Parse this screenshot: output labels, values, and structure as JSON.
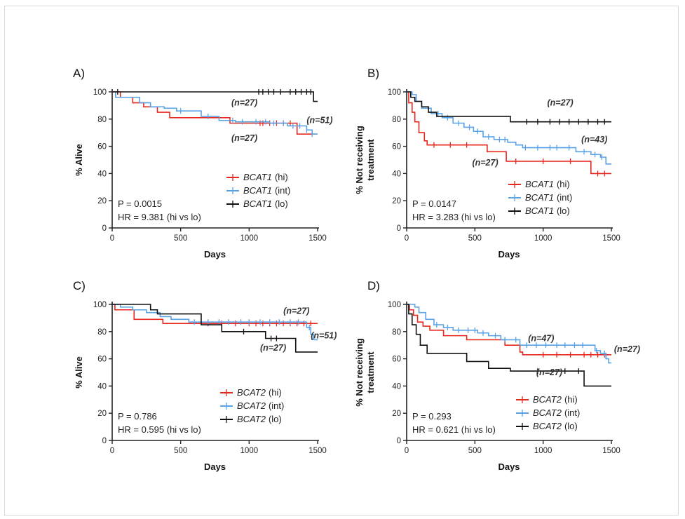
{
  "colors": {
    "hi": "#e8281f",
    "int": "#5aa2e6",
    "lo": "#111111",
    "axis": "#222222"
  },
  "chart_data": [
    {
      "panel": "A)",
      "type": "line",
      "xlabel": "Days",
      "ylabel": "% Alive",
      "ylabel2": "",
      "xlim": [
        0,
        1500
      ],
      "ylim": [
        0,
        100
      ],
      "xticks": [
        "0",
        "500",
        "1000",
        "1500"
      ],
      "yticks": [
        "0",
        "20",
        "40",
        "60",
        "80",
        "100"
      ],
      "p_text": "P = 0.0015",
      "hr_text": "HR = 9.381 (hi vs lo)",
      "series": [
        {
          "name": "BCAT1 (hi)",
          "gene": "BCAT1",
          "group": "(hi)",
          "key": "hi",
          "steps": [
            [
              0,
              100
            ],
            [
              60,
              96
            ],
            [
              150,
              92
            ],
            [
              230,
              89
            ],
            [
              330,
              85
            ],
            [
              420,
              81
            ],
            [
              700,
              81
            ],
            [
              860,
              77
            ],
            [
              1060,
              77
            ],
            [
              1350,
              69
            ],
            [
              1500,
              69
            ]
          ],
          "censors": [
            1080,
            1100,
            1150,
            1200,
            1250,
            1300
          ]
        },
        {
          "name": "BCAT1 (int)",
          "gene": "BCAT1",
          "group": "(int)",
          "key": "int",
          "steps": [
            [
              0,
              100
            ],
            [
              25,
              96
            ],
            [
              120,
              96
            ],
            [
              200,
              92
            ],
            [
              280,
              89
            ],
            [
              380,
              88
            ],
            [
              470,
              86
            ],
            [
              650,
              82
            ],
            [
              780,
              79
            ],
            [
              900,
              78
            ],
            [
              1150,
              77
            ],
            [
              1280,
              75
            ],
            [
              1420,
              72
            ],
            [
              1460,
              69
            ],
            [
              1500,
              69
            ]
          ],
          "censors": [
            500,
            700,
            880,
            950,
            1050,
            1120,
            1180,
            1250,
            1320,
            1370,
            1420,
            1460
          ]
        },
        {
          "name": "BCAT1 (lo)",
          "gene": "BCAT1",
          "group": "(lo)",
          "key": "lo",
          "steps": [
            [
              0,
              100
            ],
            [
              1470,
              100
            ],
            [
              1470,
              93
            ],
            [
              1500,
              93
            ]
          ],
          "censors": [
            40,
            1070,
            1100,
            1140,
            1180,
            1230,
            1300,
            1340,
            1380,
            1420,
            1450
          ]
        }
      ],
      "annotations": [
        {
          "text": "(n=27)",
          "x": 870,
          "y": 90
        },
        {
          "text": "(n=51)",
          "x": 1420,
          "y": 77
        },
        {
          "text": "(n=27)",
          "x": 870,
          "y": 64
        }
      ]
    },
    {
      "panel": "B)",
      "type": "line",
      "xlabel": "Days",
      "ylabel": "% Not receiving",
      "ylabel2": "treatment",
      "xlim": [
        0,
        1500
      ],
      "ylim": [
        0,
        100
      ],
      "xticks": [
        "0",
        "500",
        "1000",
        "1500"
      ],
      "yticks": [
        "0",
        "20",
        "40",
        "60",
        "80",
        "100"
      ],
      "p_text": "P = 0.0147",
      "hr_text": "HR = 3.283 (hi vs lo)",
      "series": [
        {
          "name": "BCAT1 (hi)",
          "gene": "BCAT1",
          "group": "(hi)",
          "key": "hi",
          "steps": [
            [
              0,
              100
            ],
            [
              15,
              92
            ],
            [
              40,
              85
            ],
            [
              60,
              78
            ],
            [
              90,
              70
            ],
            [
              130,
              64
            ],
            [
              150,
              61
            ],
            [
              570,
              61
            ],
            [
              590,
              56
            ],
            [
              720,
              56
            ],
            [
              730,
              49
            ],
            [
              1350,
              49
            ],
            [
              1350,
              40
            ],
            [
              1500,
              40
            ]
          ],
          "censors": [
            200,
            320,
            440,
            800,
            1000,
            1200,
            1400,
            1450
          ]
        },
        {
          "name": "BCAT1 (int)",
          "gene": "BCAT1",
          "group": "(int)",
          "key": "int",
          "steps": [
            [
              0,
              100
            ],
            [
              40,
              98
            ],
            [
              70,
              93
            ],
            [
              110,
              88
            ],
            [
              180,
              84
            ],
            [
              260,
              81
            ],
            [
              340,
              77
            ],
            [
              420,
              74
            ],
            [
              490,
              71
            ],
            [
              560,
              67
            ],
            [
              640,
              65
            ],
            [
              740,
              63
            ],
            [
              800,
              61
            ],
            [
              850,
              59
            ],
            [
              1160,
              59
            ],
            [
              1240,
              56
            ],
            [
              1350,
              54
            ],
            [
              1420,
              52
            ],
            [
              1460,
              47
            ],
            [
              1500,
              47
            ]
          ],
          "censors": [
            230,
            300,
            380,
            460,
            520,
            600,
            680,
            720,
            870,
            960,
            1050,
            1100,
            1190,
            1300,
            1380,
            1430
          ]
        },
        {
          "name": "BCAT1 (lo)",
          "gene": "BCAT1",
          "group": "(lo)",
          "key": "lo",
          "steps": [
            [
              0,
              100
            ],
            [
              30,
              96
            ],
            [
              60,
              93
            ],
            [
              110,
              89
            ],
            [
              160,
              85
            ],
            [
              220,
              82
            ],
            [
              760,
              82
            ],
            [
              760,
              78
            ],
            [
              1500,
              78
            ]
          ],
          "censors": [
            880,
            960,
            1050,
            1120,
            1190,
            1260,
            1330,
            1400,
            1450
          ]
        }
      ],
      "annotations": [
        {
          "text": "(n=27)",
          "x": 1030,
          "y": 90
        },
        {
          "text": "(n=43)",
          "x": 1280,
          "y": 63
        },
        {
          "text": "(n=27)",
          "x": 480,
          "y": 46
        }
      ]
    },
    {
      "panel": "C)",
      "type": "line",
      "xlabel": "Days",
      "ylabel": "% Alive",
      "ylabel2": "",
      "xlim": [
        0,
        1500
      ],
      "ylim": [
        0,
        100
      ],
      "xticks": [
        "0",
        "500",
        "1000",
        "1500"
      ],
      "yticks": [
        "0",
        "20",
        "40",
        "60",
        "80",
        "100"
      ],
      "p_text": "P = 0.786",
      "hr_text": "HR = 0.595 (hi vs lo)",
      "series": [
        {
          "name": "BCAT2 (hi)",
          "gene": "BCAT2",
          "group": "(hi)",
          "key": "hi",
          "steps": [
            [
              0,
              100
            ],
            [
              20,
              96
            ],
            [
              150,
              96
            ],
            [
              160,
              89
            ],
            [
              360,
              89
            ],
            [
              370,
              86
            ],
            [
              1500,
              86
            ]
          ],
          "censors": [
            700,
            800,
            900,
            1000,
            1050,
            1100,
            1150,
            1200,
            1250,
            1300,
            1350,
            1400,
            1450
          ]
        },
        {
          "name": "BCAT2 (int)",
          "gene": "BCAT2",
          "group": "(int)",
          "key": "int",
          "steps": [
            [
              0,
              100
            ],
            [
              60,
              98
            ],
            [
              150,
              96
            ],
            [
              250,
              94
            ],
            [
              350,
              91
            ],
            [
              430,
              89
            ],
            [
              560,
              87
            ],
            [
              1370,
              87
            ],
            [
              1420,
              83
            ],
            [
              1450,
              78
            ],
            [
              1470,
              74
            ],
            [
              1500,
              74
            ]
          ],
          "censors": [
            600,
            700,
            780,
            850,
            940,
            1000,
            1080,
            1150,
            1220,
            1300,
            1360,
            1440
          ]
        },
        {
          "name": "BCAT2 (lo)",
          "gene": "BCAT2",
          "group": "(lo)",
          "key": "lo",
          "steps": [
            [
              0,
              100
            ],
            [
              280,
              100
            ],
            [
              280,
              96
            ],
            [
              330,
              93
            ],
            [
              650,
              93
            ],
            [
              650,
              85
            ],
            [
              800,
              85
            ],
            [
              800,
              80
            ],
            [
              1120,
              80
            ],
            [
              1120,
              75
            ],
            [
              1340,
              75
            ],
            [
              1340,
              65
            ],
            [
              1500,
              65
            ]
          ],
          "censors": [
            960,
            1160,
            1200
          ]
        }
      ],
      "annotations": [
        {
          "text": "(n=27)",
          "x": 1250,
          "y": 93
        },
        {
          "text": "(n=51)",
          "x": 1450,
          "y": 75
        },
        {
          "text": "(n=27)",
          "x": 1080,
          "y": 66
        }
      ]
    },
    {
      "panel": "D)",
      "type": "line",
      "xlabel": "Days",
      "ylabel": "% Not receiving",
      "ylabel2": "treatment",
      "xlim": [
        0,
        1500
      ],
      "ylim": [
        0,
        100
      ],
      "xticks": [
        "0",
        "500",
        "1000",
        "1500"
      ],
      "yticks": [
        "0",
        "20",
        "40",
        "60",
        "80",
        "100"
      ],
      "p_text": "P = 0.293",
      "hr_text": "HR = 0.621 (hi vs lo)",
      "series": [
        {
          "name": "BCAT2 (hi)",
          "gene": "BCAT2",
          "group": "(hi)",
          "key": "hi",
          "steps": [
            [
              0,
              100
            ],
            [
              20,
              96
            ],
            [
              50,
              92
            ],
            [
              80,
              87
            ],
            [
              120,
              84
            ],
            [
              170,
              81
            ],
            [
              270,
              77
            ],
            [
              430,
              77
            ],
            [
              440,
              74
            ],
            [
              710,
              74
            ],
            [
              720,
              70
            ],
            [
              820,
              70
            ],
            [
              830,
              65
            ],
            [
              850,
              63
            ],
            [
              1500,
              63
            ]
          ],
          "censors": [
            1000,
            1100,
            1200,
            1300,
            1350,
            1400,
            1450
          ]
        },
        {
          "name": "BCAT2 (int)",
          "gene": "BCAT2",
          "group": "(int)",
          "key": "int",
          "steps": [
            [
              0,
              100
            ],
            [
              60,
              98
            ],
            [
              90,
              94
            ],
            [
              140,
              89
            ],
            [
              200,
              85
            ],
            [
              270,
              83
            ],
            [
              340,
              81
            ],
            [
              520,
              79
            ],
            [
              600,
              77
            ],
            [
              690,
              74
            ],
            [
              830,
              70
            ],
            [
              1350,
              70
            ],
            [
              1380,
              66
            ],
            [
              1420,
              64
            ],
            [
              1460,
              60
            ],
            [
              1480,
              57
            ],
            [
              1500,
              57
            ]
          ],
          "censors": [
            220,
            300,
            380,
            450,
            500,
            560,
            650,
            720,
            800,
            880,
            950,
            1020,
            1100,
            1160,
            1230,
            1290,
            1390,
            1450
          ]
        },
        {
          "name": "BCAT2 (lo)",
          "gene": "BCAT2",
          "group": "(lo)",
          "key": "lo",
          "steps": [
            [
              0,
              100
            ],
            [
              15,
              93
            ],
            [
              40,
              85
            ],
            [
              70,
              78
            ],
            [
              100,
              70
            ],
            [
              150,
              64
            ],
            [
              440,
              64
            ],
            [
              440,
              58
            ],
            [
              600,
              58
            ],
            [
              600,
              53
            ],
            [
              760,
              53
            ],
            [
              760,
              51
            ],
            [
              1300,
              51
            ],
            [
              1300,
              40
            ],
            [
              1500,
              40
            ]
          ],
          "censors": [
            960,
            1160,
            1260
          ]
        }
      ],
      "annotations": [
        {
          "text": "(n=47)",
          "x": 890,
          "y": 73
        },
        {
          "text": "(n=27)",
          "x": 1520,
          "y": 65
        },
        {
          "text": "(n=27)",
          "x": 950,
          "y": 48
        }
      ]
    }
  ]
}
